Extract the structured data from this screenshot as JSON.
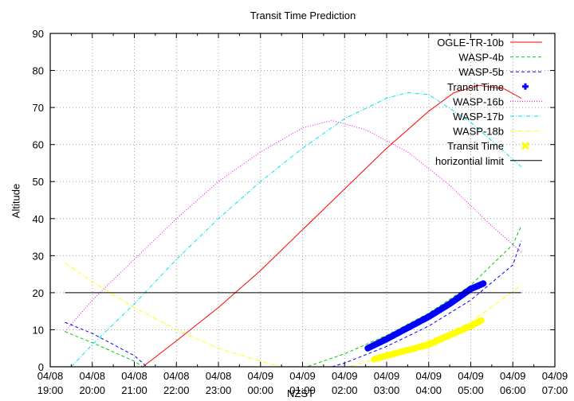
{
  "chart_data": {
    "type": "line",
    "title": "Transit Time Prediction",
    "xlabel": "NZST",
    "ylabel": "Altitude",
    "ylim": [
      0,
      90
    ],
    "yticks": [
      0,
      10,
      20,
      30,
      40,
      50,
      60,
      70,
      80,
      90
    ],
    "xticks": [
      {
        "date": "04/08",
        "time": "19:00"
      },
      {
        "date": "04/08",
        "time": "20:00"
      },
      {
        "date": "04/08",
        "time": "21:00"
      },
      {
        "date": "04/08",
        "time": "22:00"
      },
      {
        "date": "04/08",
        "time": "23:00"
      },
      {
        "date": "04/09",
        "time": "00:00"
      },
      {
        "date": "04/09",
        "time": "01:00"
      },
      {
        "date": "04/09",
        "time": "02:00"
      },
      {
        "date": "04/09",
        "time": "03:00"
      },
      {
        "date": "04/09",
        "time": "04:00"
      },
      {
        "date": "04/09",
        "time": "05:00"
      },
      {
        "date": "04/09",
        "time": "06:00"
      },
      {
        "date": "04/09",
        "time": "07:00"
      }
    ],
    "x_unit": "hours since 04/08 19:00",
    "xlim": [
      0,
      12
    ],
    "grid": true,
    "legend_position": "top-right",
    "series": [
      {
        "name": "OGLE-TR-10b",
        "color": "#ff0000",
        "style": "solid",
        "x": [
          2.2,
          3,
          4,
          5,
          6,
          7,
          8,
          9,
          9.6,
          10.2,
          10.8,
          11.2
        ],
        "y": [
          0,
          7,
          16,
          26,
          37,
          48,
          59,
          69,
          74,
          76,
          75,
          72.5
        ]
      },
      {
        "name": "WASP-4b",
        "color": "#00cc00",
        "style": "dashed",
        "x": [
          0.35,
          1,
          2,
          2.2,
          6.1,
          7,
          8,
          9,
          10,
          11,
          11.2
        ],
        "y": [
          9.5,
          6.5,
          1.5,
          0,
          0,
          3.5,
          8.5,
          14.5,
          22,
          33,
          38
        ]
      },
      {
        "name": "WASP-5b",
        "color": "#0000ff",
        "style": "dashed",
        "x": [
          0.35,
          1,
          2,
          2.3,
          6.7,
          7,
          8,
          9,
          10,
          11,
          11.2
        ],
        "y": [
          12,
          9,
          3,
          0,
          0,
          1,
          5.5,
          11,
          18,
          27.5,
          34
        ]
      },
      {
        "name": "Transit Time",
        "color": "#0000ff",
        "style": "points",
        "x": [
          7.55,
          8,
          8.5,
          9,
          9.5,
          10,
          10.3
        ],
        "y": [
          5,
          7.5,
          10.5,
          13.5,
          17,
          21,
          22.5
        ]
      },
      {
        "name": "WASP-16b",
        "color": "#ff00ff",
        "style": "dotted",
        "x": [
          0.35,
          1,
          2,
          3,
          4,
          5,
          6,
          6.7,
          7.5,
          8.5,
          9.5,
          10.5,
          11.2
        ],
        "y": [
          9.5,
          18,
          29,
          40,
          50,
          58,
          64.5,
          66.5,
          64,
          58,
          49,
          38,
          31
        ]
      },
      {
        "name": "WASP-17b",
        "color": "#00e5ee",
        "style": "dash-dot",
        "x": [
          0.5,
          1,
          2,
          3,
          4,
          5,
          6,
          7,
          8,
          8.5,
          9,
          10,
          11.2
        ],
        "y": [
          0,
          6,
          17,
          29,
          40,
          50,
          59,
          67,
          72.5,
          74,
          73.5,
          66,
          54
        ]
      },
      {
        "name": "WASP-18b",
        "color": "#ffff00",
        "style": "dash-dot",
        "x": [
          0.35,
          1,
          2,
          3,
          4,
          5,
          5.5,
          6,
          7.1,
          8,
          9,
          10,
          11.2
        ],
        "y": [
          28,
          23,
          16,
          10,
          5,
          1.5,
          0,
          0,
          0,
          3,
          7,
          12,
          22
        ]
      },
      {
        "name": "Transit Time",
        "color": "#ffff00",
        "style": "points",
        "x": [
          7.7,
          8,
          8.5,
          9,
          9.5,
          10,
          10.25
        ],
        "y": [
          2,
          3,
          4.5,
          6,
          8.5,
          11,
          12.5
        ]
      },
      {
        "name": "horizontial limit",
        "color": "#000000",
        "style": "solid",
        "x": [
          0.35,
          11.2
        ],
        "y": [
          20,
          20
        ]
      }
    ]
  }
}
